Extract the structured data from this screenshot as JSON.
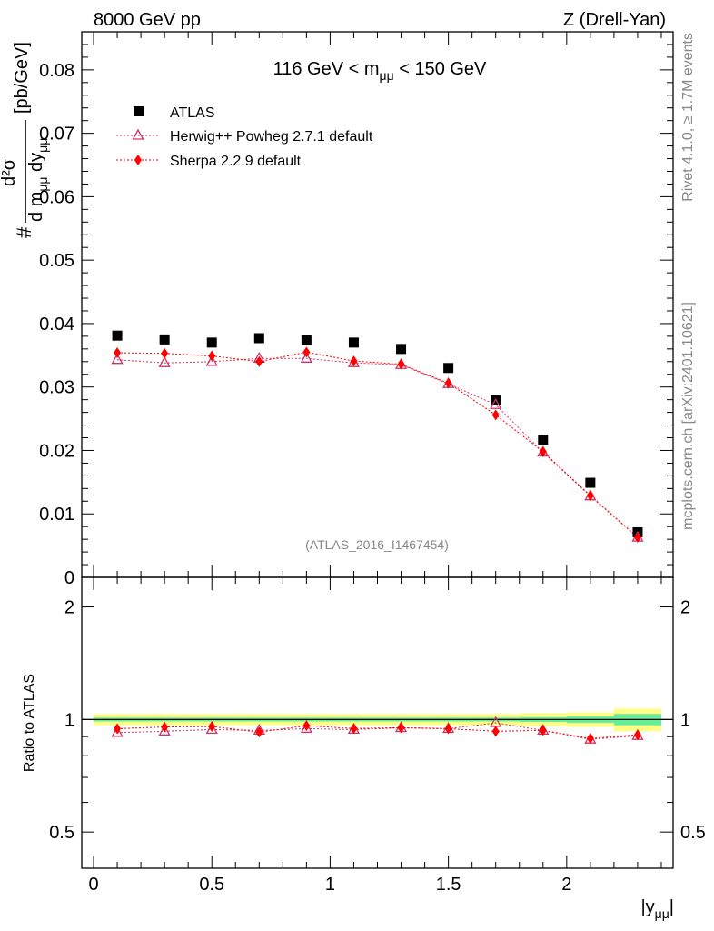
{
  "header": {
    "left": "8000 GeV pp",
    "right": "Z (Drell-Yan)"
  },
  "side_labels": {
    "rivet": "Rivet 4.1.0, ≥ 1.7M events",
    "mcplots": "mcplots.cern.ch [arXiv:2401.10621]"
  },
  "colors": {
    "atlas": "#000000",
    "herwig": "#cc3366",
    "sherpa": "#ff0000",
    "band_yellow": "#ffff88",
    "band_green": "#66ee99"
  },
  "chart_data": [
    {
      "type": "scatter",
      "title": "116 GeV < m_μμ < 150 GeV",
      "title_parts": {
        "pre": "116 GeV < m",
        "sub": "μμ",
        "post": " < 150 GeV"
      },
      "ylabel": "d²σ / d m_μμ dy_μμ [pb/GeV]",
      "ylabel_parts": {
        "hash": "#",
        "num": "d²σ",
        "den": "d m",
        "den_sub": "μμ",
        "den2": " dy",
        "den2_sub": "μμ",
        "unit": "[pb/GeV]"
      },
      "xlim": [
        -0.05,
        2.45
      ],
      "ylim": [
        0,
        0.086
      ],
      "yticks": [
        0,
        0.01,
        0.02,
        0.03,
        0.04,
        0.05,
        0.06,
        0.07,
        0.08
      ],
      "ytick_labels": [
        "0",
        "0.01",
        "0.02",
        "0.03",
        "0.04",
        "0.05",
        "0.06",
        "0.07",
        "0.08"
      ],
      "watermark": "(ATLAS_2016_I1467454)",
      "x": [
        0.1,
        0.3,
        0.5,
        0.7,
        0.9,
        1.1,
        1.3,
        1.5,
        1.7,
        1.9,
        2.1,
        2.3
      ],
      "series": [
        {
          "name": "ATLAS",
          "marker": "square",
          "values": [
            0.0381,
            0.0375,
            0.037,
            0.0377,
            0.0374,
            0.037,
            0.036,
            0.033,
            0.0279,
            0.0217,
            0.0149,
            0.0071
          ]
        },
        {
          "name": "Herwig++ Powheg 2.7.1 default",
          "marker": "open-triangle",
          "values": [
            0.0343,
            0.0338,
            0.034,
            0.0345,
            0.0345,
            0.0338,
            0.0335,
            0.0305,
            0.0272,
            0.0197,
            0.0128,
            0.0063
          ]
        },
        {
          "name": "Sherpa 2.2.9 default",
          "marker": "diamond",
          "values": [
            0.0354,
            0.0353,
            0.0349,
            0.034,
            0.0355,
            0.0341,
            0.0336,
            0.0306,
            0.0256,
            0.0198,
            0.0129,
            0.0063
          ]
        }
      ]
    },
    {
      "type": "line",
      "ylabel": "Ratio to ATLAS",
      "xlabel": "|y_μμ|",
      "xlabel_parts": {
        "main": "|y",
        "sub": "μμ",
        "end": "|"
      },
      "xlim": [
        -0.05,
        2.45
      ],
      "ylim": [
        0.4,
        2.4
      ],
      "log_y": true,
      "yticks": [
        0.5,
        1,
        2
      ],
      "ytick_labels": [
        "0.5",
        "1",
        "2"
      ],
      "xticks": [
        0,
        0.5,
        1,
        1.5,
        2
      ],
      "xtick_labels": [
        "0",
        "0.5",
        "1",
        "1.5",
        "2"
      ],
      "x": [
        0.1,
        0.3,
        0.5,
        0.7,
        0.9,
        1.1,
        1.3,
        1.5,
        1.7,
        1.9,
        2.1,
        2.3
      ],
      "bin_edges": [
        0.0,
        0.2,
        0.4,
        0.6,
        0.8,
        1.0,
        1.2,
        1.4,
        1.6,
        1.8,
        2.0,
        2.2,
        2.4
      ],
      "band_total": [
        0.035,
        0.035,
        0.035,
        0.035,
        0.035,
        0.035,
        0.035,
        0.035,
        0.035,
        0.04,
        0.045,
        0.07
      ],
      "band_stat": [
        0.012,
        0.012,
        0.012,
        0.012,
        0.012,
        0.012,
        0.012,
        0.012,
        0.012,
        0.015,
        0.02,
        0.035
      ],
      "series": [
        {
          "name": "Herwig++ Powheg 2.7.1 default",
          "values": [
            0.922,
            0.93,
            0.94,
            0.935,
            0.945,
            0.94,
            0.95,
            0.945,
            0.98,
            0.935,
            0.885,
            0.905
          ]
        },
        {
          "name": "Sherpa 2.2.9 default",
          "values": [
            0.945,
            0.955,
            0.958,
            0.925,
            0.963,
            0.946,
            0.951,
            0.945,
            0.93,
            0.935,
            0.89,
            0.91
          ]
        }
      ]
    }
  ]
}
